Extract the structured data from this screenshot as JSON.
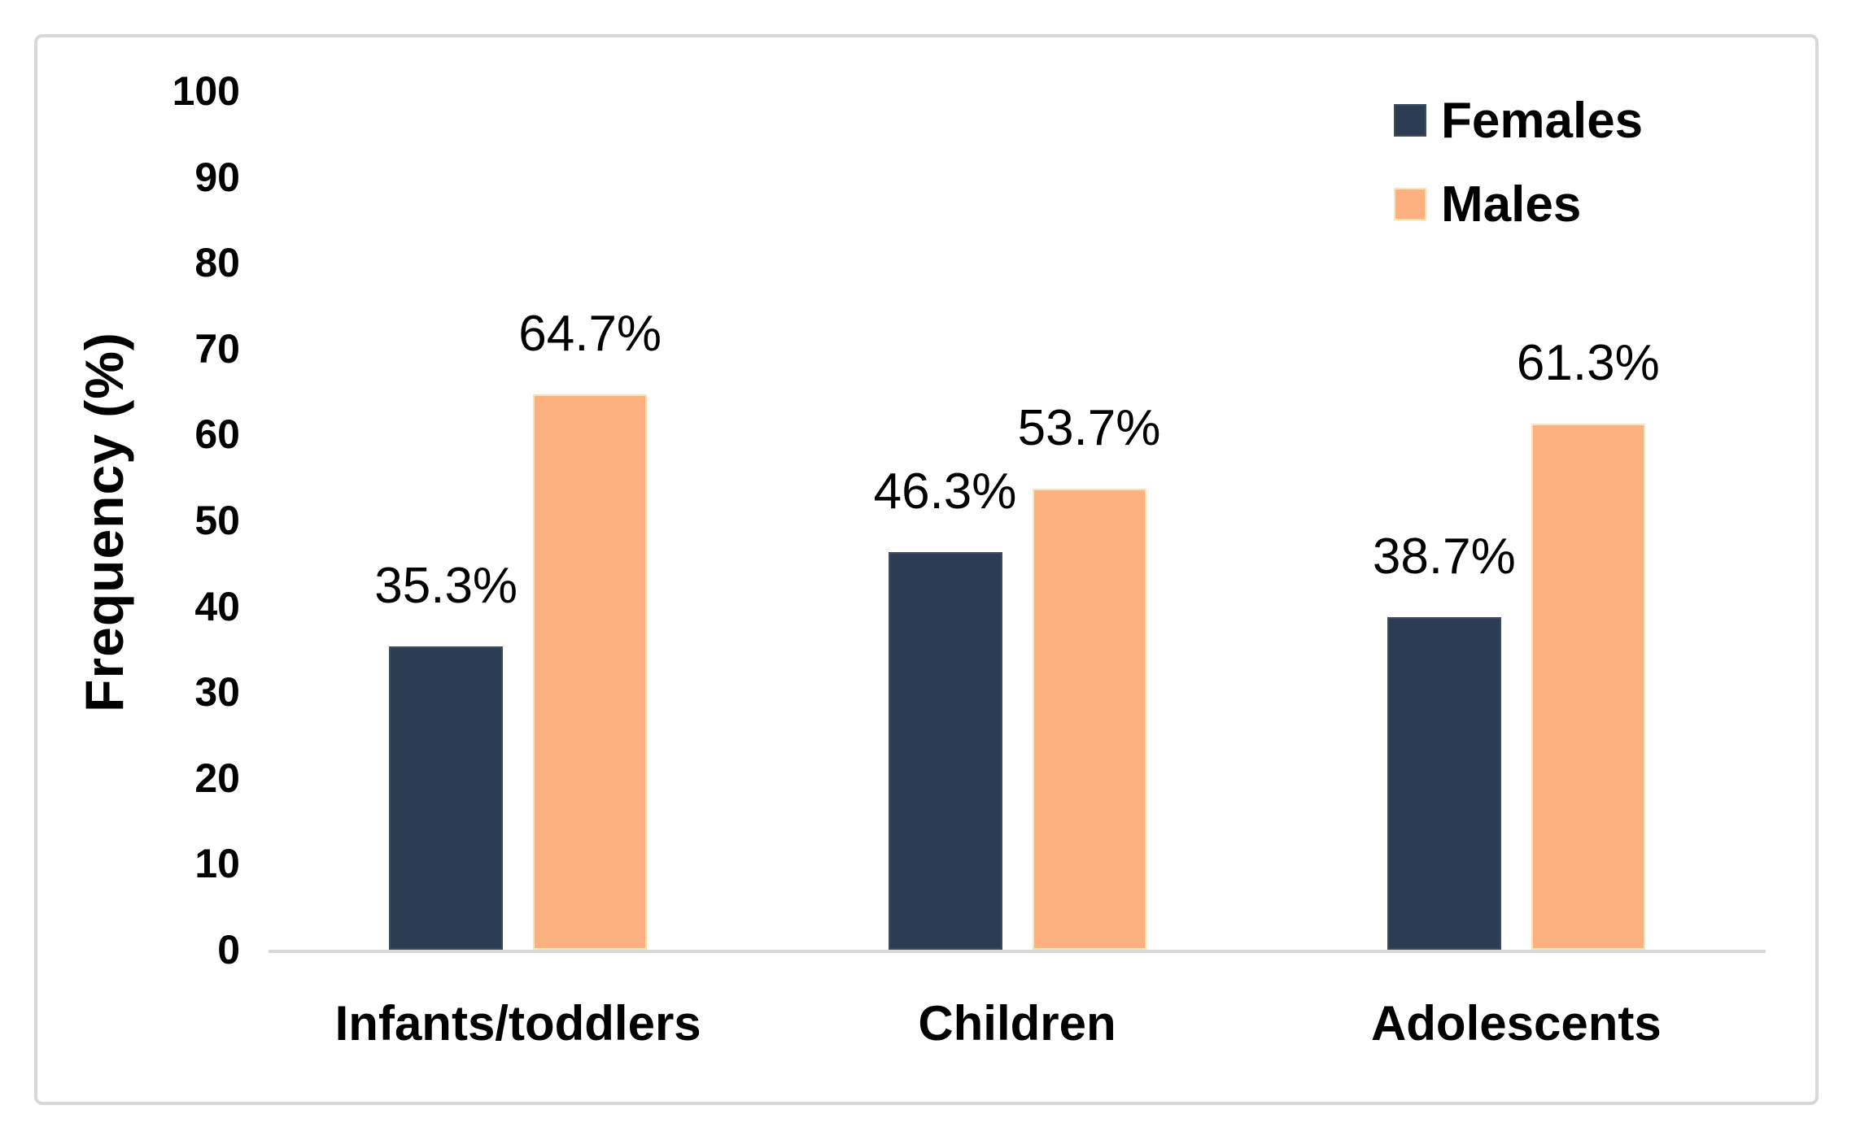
{
  "chart_data": {
    "type": "bar",
    "title": "",
    "xlabel": "",
    "ylabel": "Frequency (%)",
    "ylim": [
      0,
      100
    ],
    "yticks": [
      0,
      10,
      20,
      30,
      40,
      50,
      60,
      70,
      80,
      90,
      100
    ],
    "grid": false,
    "legend_position": "top-right",
    "categories": [
      "Infants/toddlers",
      "Children",
      "Adolescents"
    ],
    "series": [
      {
        "name": "Females",
        "color": "#2c3c52",
        "border_color": "#3d4c61",
        "values": [
          35.3,
          46.3,
          38.7
        ],
        "data_labels": [
          "35.3%",
          "46.3%",
          "38.7%"
        ]
      },
      {
        "name": "Males",
        "color": "#fdb080",
        "border_color": "#ffe2ae",
        "values": [
          64.7,
          53.7,
          61.3
        ],
        "data_labels": [
          "64.7%",
          "53.7%",
          "61.3%"
        ]
      }
    ],
    "axis_color": "#d9d9d9",
    "frame_color": "#d8d8d8",
    "text_color": "#000000"
  }
}
